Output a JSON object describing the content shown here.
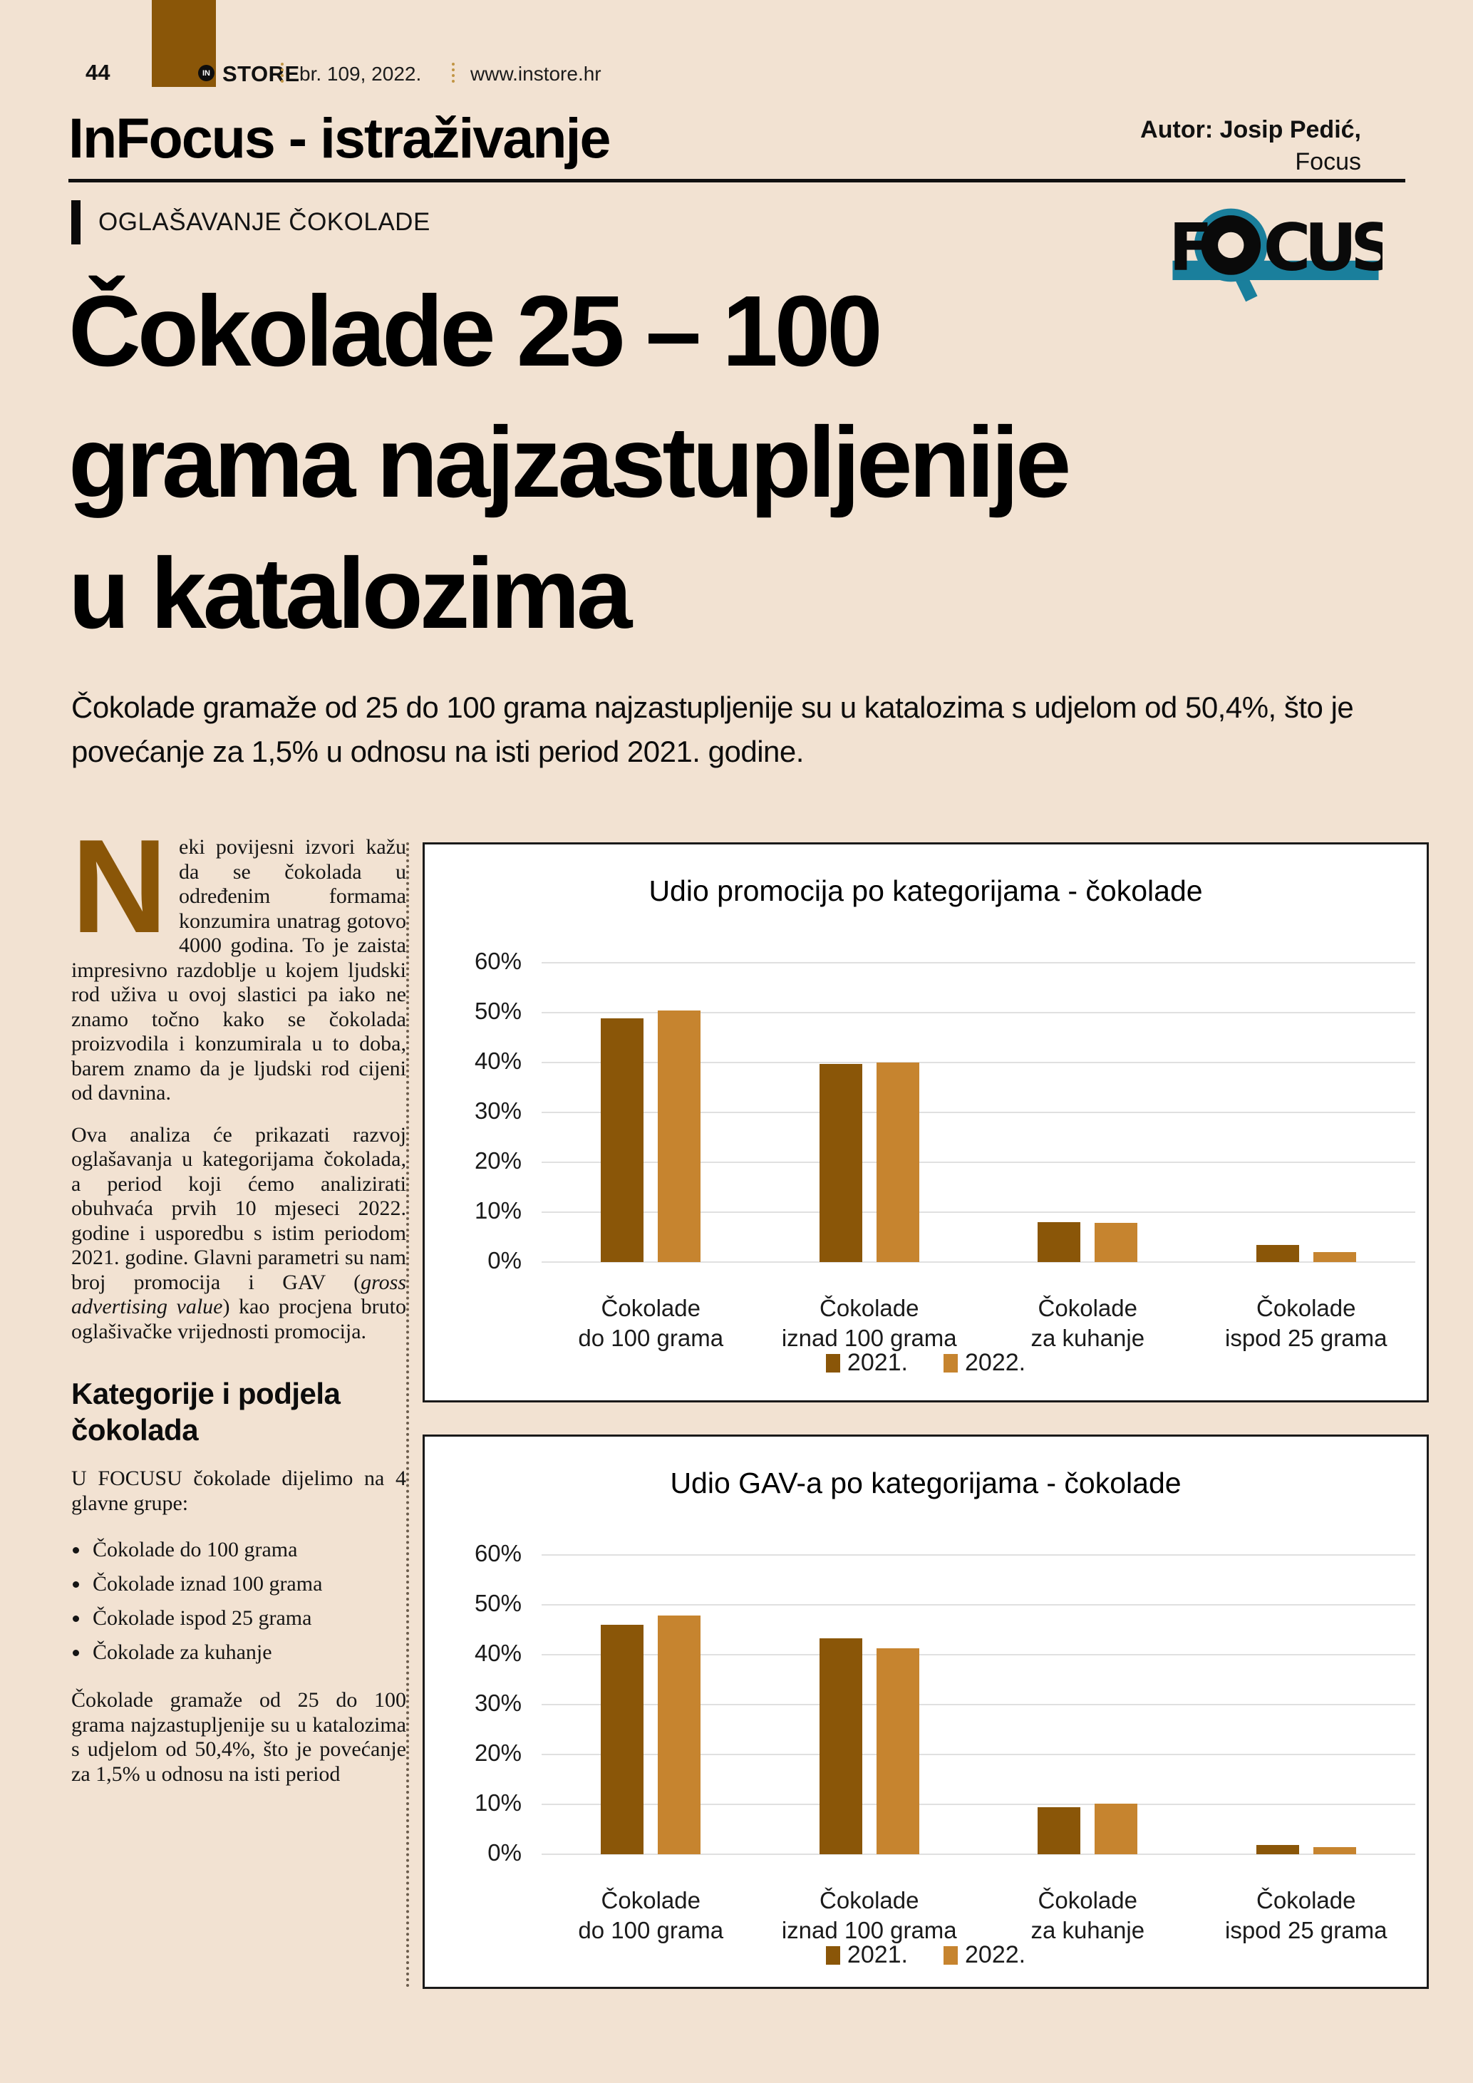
{
  "colors": {
    "page_bg": "#f2e2d2",
    "brown": "#8a5608",
    "orange": "#c6842f",
    "teal": "#1a7f9c",
    "gridline": "#e0e0e0",
    "dotted_gold": "#c19544"
  },
  "header": {
    "page_number": "44",
    "brand_badge": "IN",
    "brand": "STORE",
    "issue": "br. 109, 2022.",
    "website": "www.instore.hr",
    "section_title": "InFocus - istraživanje",
    "author_bold": "Autor: Josip Pedić,",
    "author_light": "Focus"
  },
  "kicker": "OGLAŠAVANJE ČOKOLADE",
  "focus_logo": {
    "first_letter": "F",
    "rest": "CUS"
  },
  "title": {
    "line1": "Čokolade 25 – 100",
    "line2": "grama najzastupljenije",
    "line3": "u katalozima"
  },
  "intro": "Čokolade gramaže od 25 do 100 grama najzastupljenije su u katalozima s udjelom od 50,4%, što je povećanje za 1,5% u odnosu na isti period 2021. godine.",
  "article": {
    "dropcap": "N",
    "p1": "eki povijesni izvori kažu da se čokolada u određenim formama konzumira unatrag gotovo 4000 godina. To je zaista impresivno razdoblje u kojem ljudski rod uživa u ovoj slastici pa iako ne znamo točno kako se čokolada proizvodila i konzumirala u to doba, barem znamo da je ljudski rod cijeni od davnina.",
    "p2_a": "Ova analiza će prikazati razvoj oglašavanja u kategorijama čokolada, a period koji ćemo analizirati obuhvaća prvih 10 mjeseci 2022. godine i usporedbu s istim periodom 2021. godine. Glavni parametri su nam broj promocija i GAV (",
    "p2_italic": "gross advertising value",
    "p2_b": ") kao procjena bruto oglašivačke vrijednosti promocija.",
    "heading2": "Kategorije i podjela čokolada",
    "p3": "U FOCUSU čokolade dijelimo na 4 glavne grupe:",
    "bullets": [
      "Čokolade do 100 grama",
      "Čokolade iznad 100 grama",
      "Čokolade ispod 25 grama",
      "Čokolade za kuhanje"
    ],
    "p4": "Čokolade gramaže od 25 do 100 grama najzastupljenije su u katalozima s udjelom od 50,4%, što je povećanje za 1,5% u odnosu na isti period"
  },
  "chart_data": [
    {
      "type": "bar",
      "title": "Udio promocija po kategorijama - čokolade",
      "categories": [
        "Čokolade do 100 grama",
        "Čokolade iznad 100 grama",
        "Čokolade za kuhanje",
        "Čokolade ispod 25 grama"
      ],
      "category_lines": [
        [
          "Čokolade",
          "do 100 grama"
        ],
        [
          "Čokolade",
          "iznad 100 grama"
        ],
        [
          "Čokolade",
          "za kuhanje"
        ],
        [
          "Čokolade",
          "ispod 25 grama"
        ]
      ],
      "series": [
        {
          "name": "2021.",
          "color": "#8a5608",
          "values": [
            48.9,
            39.7,
            8.0,
            3.4
          ]
        },
        {
          "name": "2022.",
          "color": "#c6842f",
          "values": [
            50.4,
            40.0,
            7.8,
            2.0
          ]
        }
      ],
      "ylim": [
        0,
        60
      ],
      "yticks": [
        0,
        10,
        20,
        30,
        40,
        50,
        60
      ],
      "ytick_suffix": "%",
      "grid": true,
      "legend_position": "bottom"
    },
    {
      "type": "bar",
      "title": "Udio GAV-a po kategorijama - čokolade",
      "categories": [
        "Čokolade do 100 grama",
        "Čokolade iznad 100 grama",
        "Čokolade za kuhanje",
        "Čokolade ispod 25 grama"
      ],
      "category_lines": [
        [
          "Čokolade",
          "do 100 grama"
        ],
        [
          "Čokolade",
          "iznad 100 grama"
        ],
        [
          "Čokolade",
          "za kuhanje"
        ],
        [
          "Čokolade",
          "ispod 25 grama"
        ]
      ],
      "series": [
        {
          "name": "2021.",
          "color": "#8a5608",
          "values": [
            46.0,
            43.3,
            9.5,
            1.8
          ]
        },
        {
          "name": "2022.",
          "color": "#c6842f",
          "values": [
            47.8,
            41.3,
            10.2,
            1.4
          ]
        }
      ],
      "ylim": [
        0,
        60
      ],
      "yticks": [
        0,
        10,
        20,
        30,
        40,
        50,
        60
      ],
      "ytick_suffix": "%",
      "grid": true,
      "legend_position": "bottom"
    }
  ]
}
